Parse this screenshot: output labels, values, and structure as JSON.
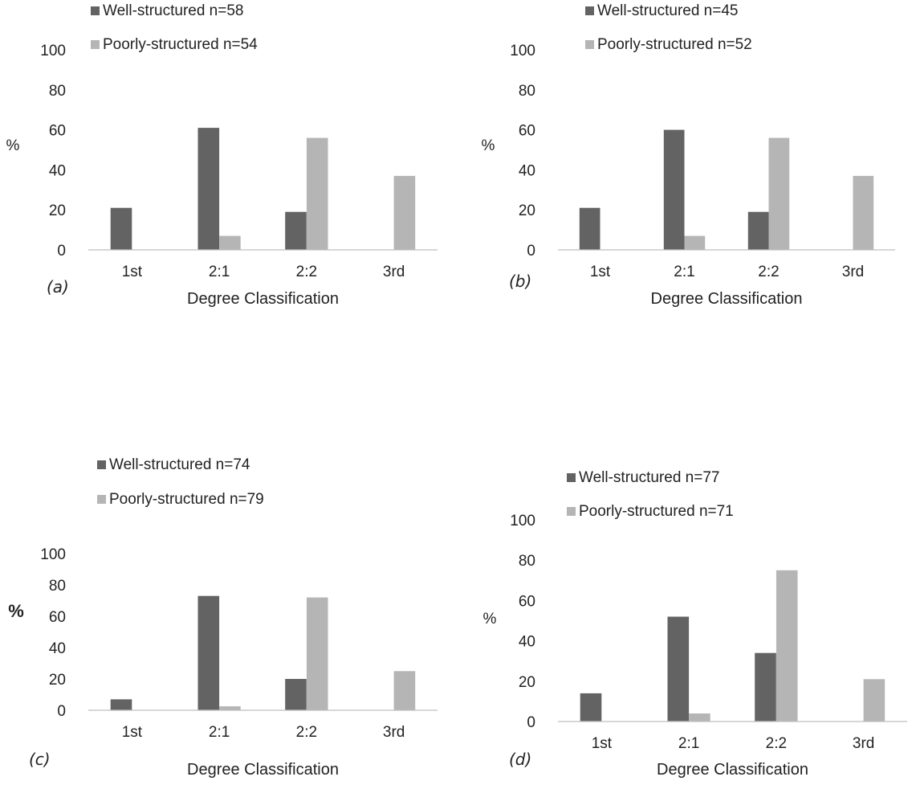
{
  "colors": {
    "well": "#636363",
    "poor": "#b5b5b5",
    "axis": "#bfbfbf",
    "text": "#222222"
  },
  "chart_data": [
    {
      "type": "bar",
      "panel_label": "(a)",
      "xlabel": "Degree Classification",
      "ylabel": "%",
      "ylabel_bold": false,
      "categories": [
        "1st",
        "2:1",
        "2:2",
        "3rd"
      ],
      "ylim": [
        0,
        100
      ],
      "yticks": [
        "0",
        "20",
        "40",
        "60",
        "80",
        "100"
      ],
      "grid": false,
      "legend_position": "top-left",
      "series": [
        {
          "name": "Well-structured n=58",
          "values": [
            21,
            61,
            19,
            0
          ]
        },
        {
          "name": "Poorly-structured n=54",
          "values": [
            0,
            7,
            56,
            37
          ]
        }
      ]
    },
    {
      "type": "bar",
      "panel_label": "(b)",
      "xlabel": "Degree Classification",
      "ylabel": "%",
      "ylabel_bold": false,
      "categories": [
        "1st",
        "2:1",
        "2:2",
        "3rd"
      ],
      "ylim": [
        0,
        100
      ],
      "yticks": [
        "0",
        "20",
        "40",
        "60",
        "80",
        "100"
      ],
      "grid": false,
      "legend_position": "top-left",
      "series": [
        {
          "name": "Well-structured n=45",
          "values": [
            21,
            60,
            19,
            0
          ]
        },
        {
          "name": "Poorly-structured n=52",
          "values": [
            0,
            7,
            56,
            37
          ]
        }
      ]
    },
    {
      "type": "bar",
      "panel_label": "(c)",
      "xlabel": "Degree Classification",
      "ylabel": "%",
      "ylabel_bold": true,
      "categories": [
        "1st",
        "2:1",
        "2:2",
        "3rd"
      ],
      "ylim": [
        0,
        100
      ],
      "yticks": [
        "0",
        "20",
        "40",
        "60",
        "80",
        "100"
      ],
      "grid": false,
      "legend_position": "top-left",
      "series": [
        {
          "name": "Well-structured n=74",
          "values": [
            7,
            73,
            20,
            0
          ]
        },
        {
          "name": "Poorly-structured n=79",
          "values": [
            0,
            2.5,
            72,
            25
          ]
        }
      ]
    },
    {
      "type": "bar",
      "panel_label": "(d)",
      "xlabel": "Degree Classification",
      "ylabel": "%",
      "ylabel_bold": false,
      "categories": [
        "1st",
        "2:1",
        "2:2",
        "3rd"
      ],
      "ylim": [
        0,
        100
      ],
      "yticks": [
        "0",
        "20",
        "40",
        "60",
        "80",
        "100"
      ],
      "grid": false,
      "legend_position": "top-left",
      "series": [
        {
          "name": "Well-structured n=77",
          "values": [
            14,
            52,
            34,
            0
          ]
        },
        {
          "name": "Poorly-structured n=71",
          "values": [
            0,
            4,
            75,
            21
          ]
        }
      ]
    }
  ]
}
